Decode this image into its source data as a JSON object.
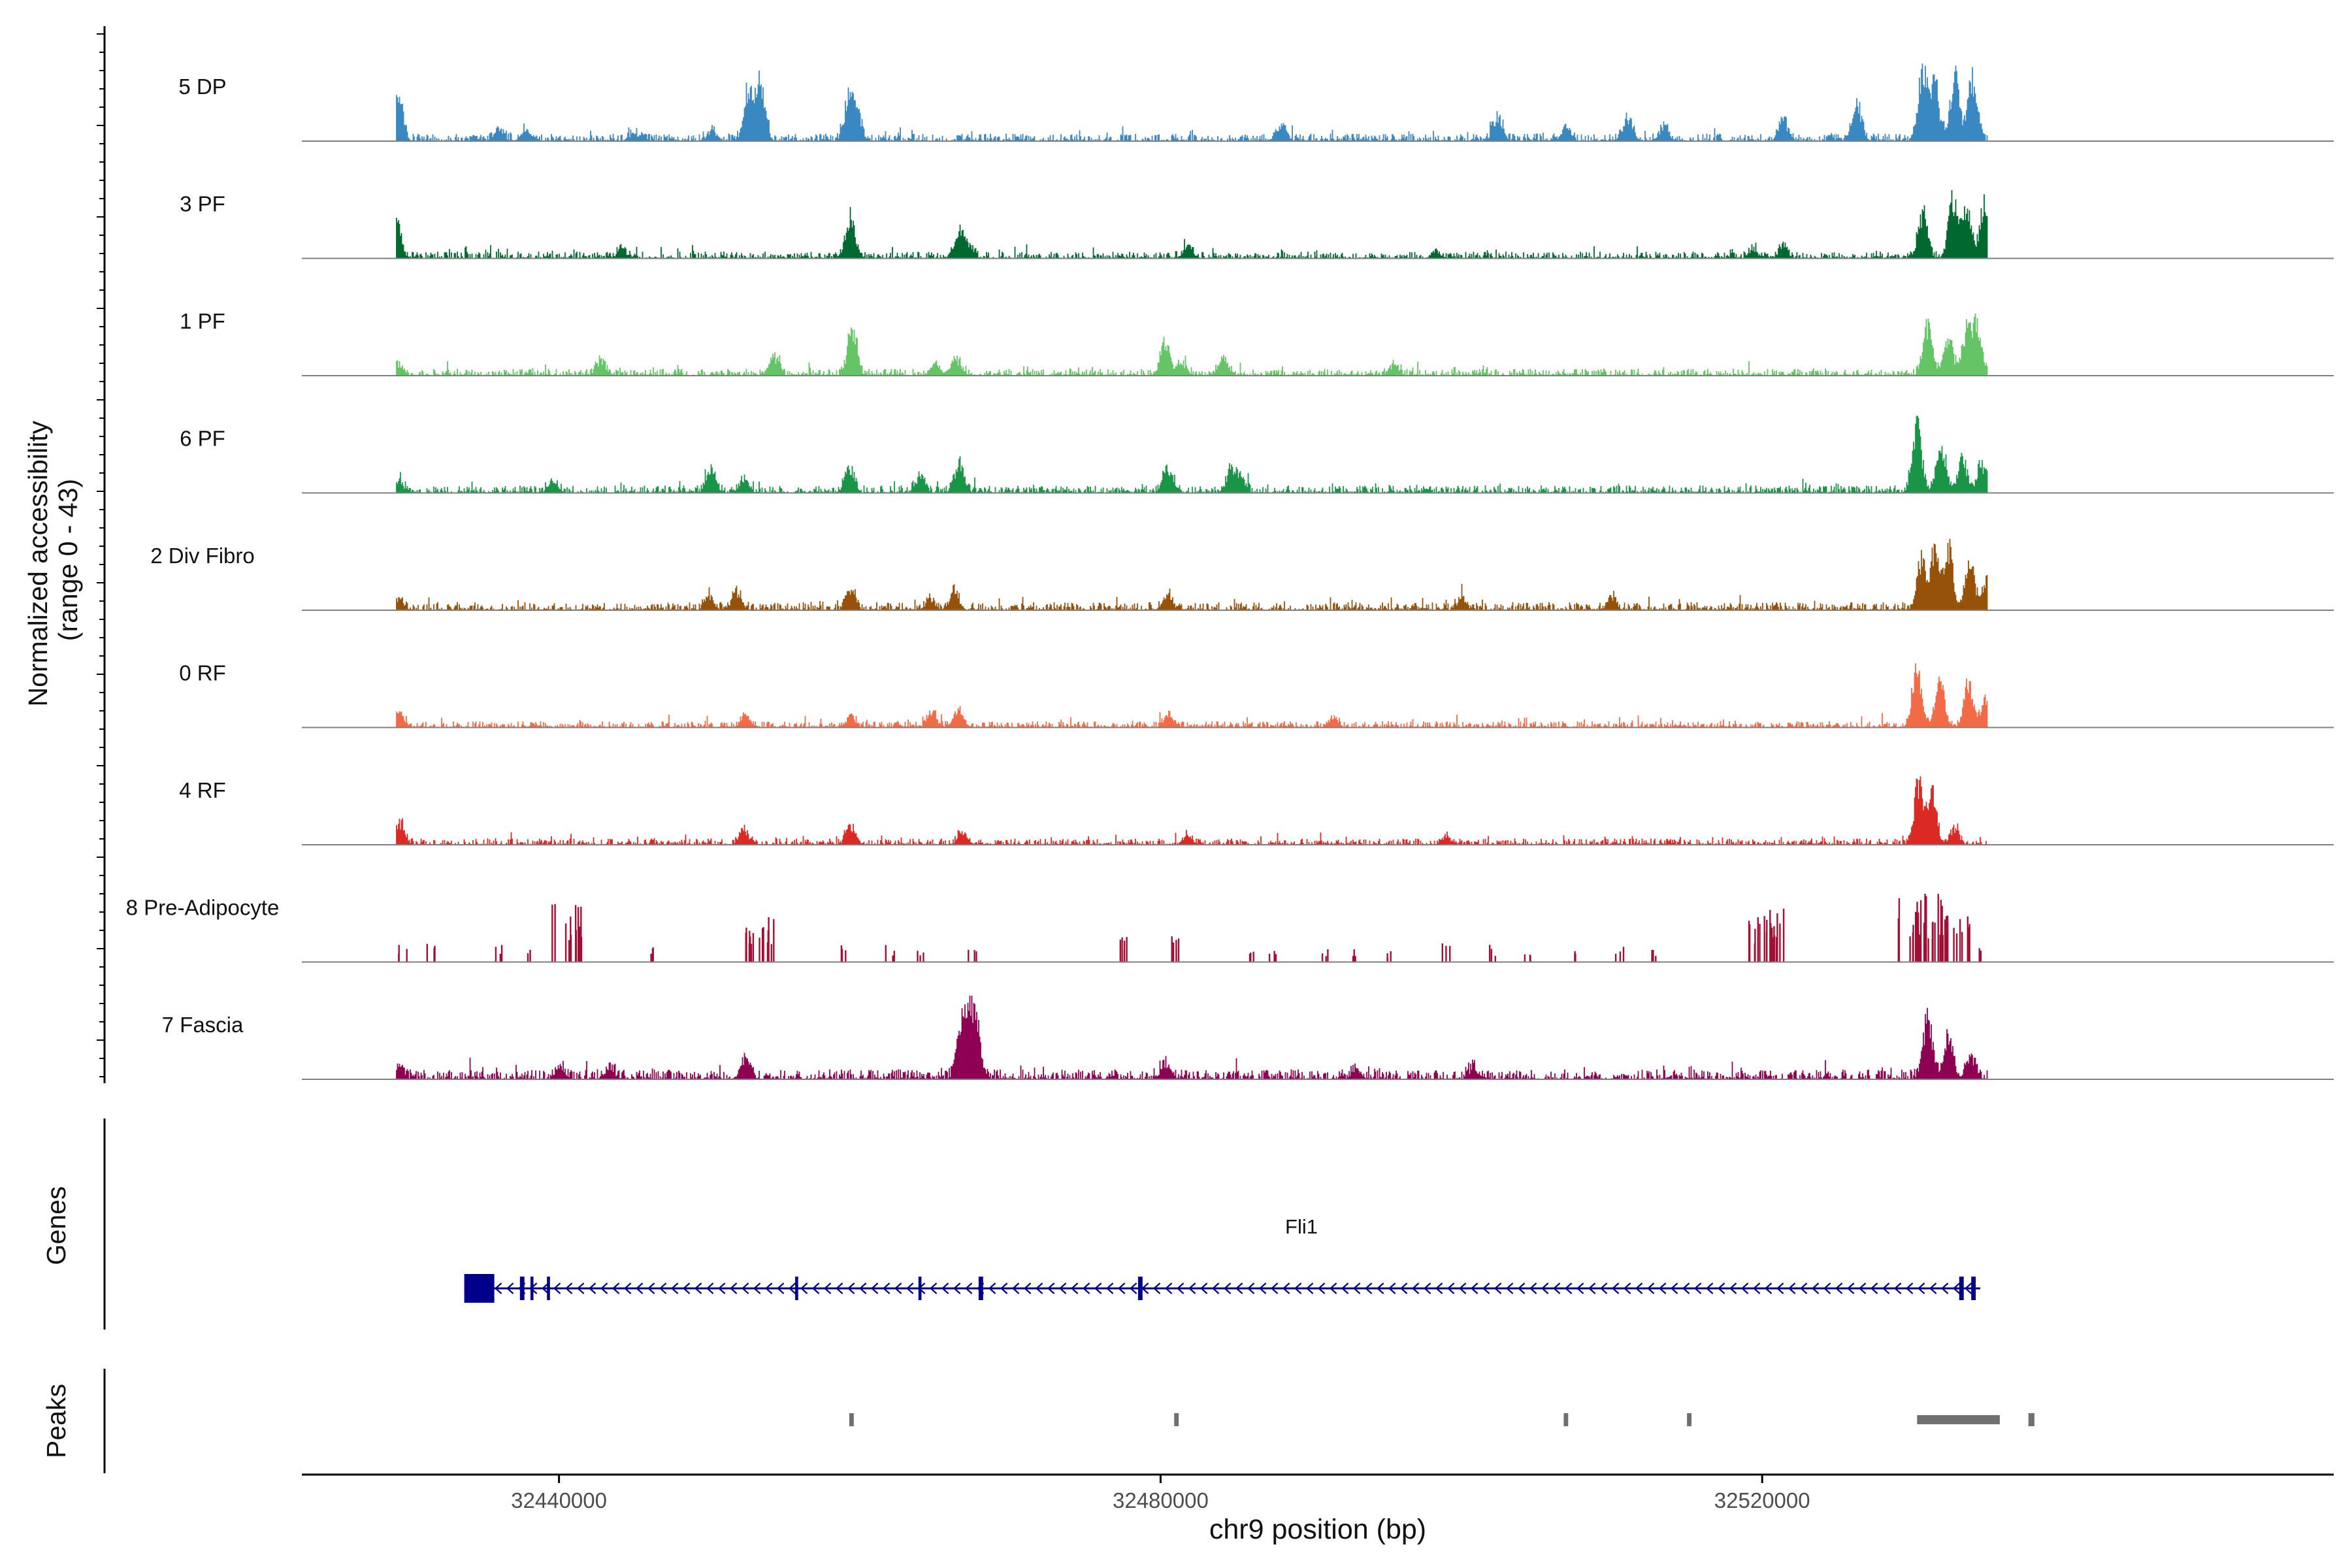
{
  "chart_data": {
    "type": "area",
    "title": "",
    "ylabel_line1": "Normalized accessibility",
    "ylabel_line2": "(range 0 - 43)",
    "yrange": [
      0,
      43
    ],
    "xlabel": "chr9 position (bp)",
    "xlim": [
      32422900,
      32558000
    ],
    "xticks": [
      32440000,
      32480000,
      32520000
    ],
    "xtick_labels": [
      "32440000",
      "32480000",
      "32520000"
    ],
    "signal_range": [
      32429200,
      32535000
    ],
    "series": [
      {
        "name": "5 DP",
        "color": "#3A88C2",
        "noise": 2.4,
        "sparse": false,
        "peaks": [
          [
            32429300,
            30
          ],
          [
            32436000,
            7
          ],
          [
            32437800,
            7
          ],
          [
            32445000,
            5
          ],
          [
            32450200,
            6
          ],
          [
            32452600,
            30
          ],
          [
            32453400,
            35
          ],
          [
            32459300,
            25
          ],
          [
            32459800,
            18
          ],
          [
            32488100,
            10
          ],
          [
            32502400,
            15
          ],
          [
            32507000,
            8
          ],
          [
            32511100,
            14
          ],
          [
            32513500,
            9
          ],
          [
            32521400,
            13
          ],
          [
            32526300,
            23
          ],
          [
            32530700,
            42
          ],
          [
            32532800,
            40
          ],
          [
            32531500,
            32
          ],
          [
            32534000,
            37
          ]
        ]
      },
      {
        "name": "3 PF",
        "color": "#00692F",
        "noise": 2.2,
        "sparse": false,
        "peaks": [
          [
            32429200,
            22
          ],
          [
            32444200,
            5
          ],
          [
            32459400,
            25
          ],
          [
            32466600,
            15
          ],
          [
            32467200,
            8
          ],
          [
            32481800,
            7
          ],
          [
            32498300,
            3
          ],
          [
            32519400,
            5
          ],
          [
            32521400,
            6
          ],
          [
            32530700,
            28
          ],
          [
            32532700,
            37
          ],
          [
            32533600,
            30
          ],
          [
            32534800,
            34
          ]
        ]
      },
      {
        "name": "1 PF",
        "color": "#65C465",
        "noise": 2.2,
        "sparse": false,
        "peaks": [
          [
            32429300,
            6
          ],
          [
            32442800,
            10
          ],
          [
            32454300,
            11
          ],
          [
            32459500,
            31
          ],
          [
            32465000,
            7
          ],
          [
            32466400,
            10
          ],
          [
            32480300,
            20
          ],
          [
            32481400,
            8
          ],
          [
            32484200,
            10
          ],
          [
            32495500,
            6
          ],
          [
            32531000,
            30
          ],
          [
            32532400,
            22
          ],
          [
            32533600,
            28
          ],
          [
            32534300,
            30
          ]
        ]
      },
      {
        "name": "6 PF",
        "color": "#1A9548",
        "noise": 2.4,
        "sparse": false,
        "peaks": [
          [
            32429400,
            6
          ],
          [
            32439600,
            8
          ],
          [
            32450100,
            14
          ],
          [
            32452300,
            9
          ],
          [
            32459300,
            15
          ],
          [
            32464000,
            10
          ],
          [
            32466600,
            18
          ],
          [
            32480500,
            15
          ],
          [
            32484700,
            13
          ],
          [
            32485300,
            10
          ],
          [
            32530300,
            40
          ],
          [
            32531900,
            30
          ],
          [
            32533300,
            20
          ],
          [
            32534600,
            18
          ]
        ]
      },
      {
        "name": "2 Div Fibro",
        "color": "#955208",
        "noise": 2.6,
        "sparse": false,
        "peaks": [
          [
            32429400,
            5
          ],
          [
            32450000,
            8
          ],
          [
            32451800,
            10
          ],
          [
            32459400,
            12
          ],
          [
            32464700,
            6
          ],
          [
            32466300,
            10
          ],
          [
            32480500,
            9
          ],
          [
            32500000,
            6
          ],
          [
            32510000,
            7
          ],
          [
            32530600,
            30
          ],
          [
            32531500,
            36
          ],
          [
            32532400,
            34
          ],
          [
            32533800,
            30
          ],
          [
            32534900,
            18
          ]
        ]
      },
      {
        "name": "0 RF",
        "color": "#F26B47",
        "noise": 2.0,
        "sparse": false,
        "peaks": [
          [
            32429400,
            8
          ],
          [
            32452400,
            8
          ],
          [
            32459400,
            7
          ],
          [
            32464800,
            9
          ],
          [
            32466500,
            10
          ],
          [
            32480500,
            8
          ],
          [
            32491500,
            5
          ],
          [
            32530300,
            39
          ],
          [
            32531800,
            30
          ],
          [
            32533700,
            26
          ],
          [
            32534800,
            16
          ]
        ]
      },
      {
        "name": "4 RF",
        "color": "#DB2A24",
        "noise": 2.0,
        "sparse": false,
        "peaks": [
          [
            32429400,
            14
          ],
          [
            32452300,
            9
          ],
          [
            32459400,
            12
          ],
          [
            32466800,
            7
          ],
          [
            32481800,
            5
          ],
          [
            32499000,
            5
          ],
          [
            32530400,
            39
          ],
          [
            32531300,
            30
          ],
          [
            32532800,
            10
          ]
        ]
      },
      {
        "name": "8 Pre-Adipocyte",
        "color": "#A11034",
        "noise": 0,
        "sparse": true,
        "peaks": [
          [
            32429600,
            9
          ],
          [
            32431500,
            10
          ],
          [
            32436000,
            10
          ],
          [
            32438000,
            8
          ],
          [
            32440500,
            30
          ],
          [
            32441200,
            20
          ],
          [
            32446000,
            8
          ],
          [
            32452500,
            20
          ],
          [
            32453500,
            26
          ],
          [
            32459000,
            10
          ],
          [
            32462000,
            9
          ],
          [
            32464000,
            7
          ],
          [
            32467500,
            7
          ],
          [
            32477500,
            14
          ],
          [
            32481000,
            15
          ],
          [
            32486000,
            7
          ],
          [
            32487500,
            9
          ],
          [
            32491000,
            8
          ],
          [
            32493000,
            7
          ],
          [
            32495000,
            6
          ],
          [
            32499000,
            10
          ],
          [
            32502000,
            9
          ],
          [
            32504500,
            9
          ],
          [
            32507500,
            7
          ],
          [
            32510500,
            9
          ],
          [
            32512800,
            8
          ],
          [
            32520000,
            24
          ],
          [
            32520500,
            30
          ],
          [
            32530000,
            35
          ],
          [
            32531000,
            40
          ],
          [
            32532000,
            33
          ],
          [
            32533000,
            24
          ],
          [
            32534500,
            8
          ]
        ]
      },
      {
        "name": "7 Fascia",
        "color": "#8E0152",
        "noise": 3.2,
        "sparse": false,
        "peaks": [
          [
            32429300,
            8
          ],
          [
            32440100,
            8
          ],
          [
            32443400,
            6
          ],
          [
            32452400,
            13
          ],
          [
            32466700,
            28
          ],
          [
            32467300,
            40
          ],
          [
            32467800,
            24
          ],
          [
            32480300,
            8
          ],
          [
            32493000,
            6
          ],
          [
            32500800,
            7
          ],
          [
            32531000,
            39
          ],
          [
            32532400,
            24
          ],
          [
            32533900,
            14
          ]
        ]
      }
    ],
    "genes": {
      "title": "Genes",
      "gene_label": "Fli1",
      "start": 32433700,
      "end": 32534500,
      "strand": "-",
      "exons": [
        [
          32433700,
          32435700
        ],
        [
          32437400,
          32437700
        ],
        [
          32438100,
          32438300
        ],
        [
          32439200,
          32439400
        ],
        [
          32455700,
          32455900
        ],
        [
          32463900,
          32464100
        ],
        [
          32467900,
          32468200
        ],
        [
          32478500,
          32478800
        ],
        [
          32533100,
          32533400
        ],
        [
          32533900,
          32534200
        ]
      ]
    },
    "peaks_track": {
      "title": "Peaks",
      "regions": [
        [
          32459300,
          32459600
        ],
        [
          32480900,
          32481200
        ],
        [
          32506800,
          32507100
        ],
        [
          32515000,
          32515300
        ],
        [
          32530300,
          32535800
        ],
        [
          32537700,
          32538100
        ]
      ]
    }
  }
}
